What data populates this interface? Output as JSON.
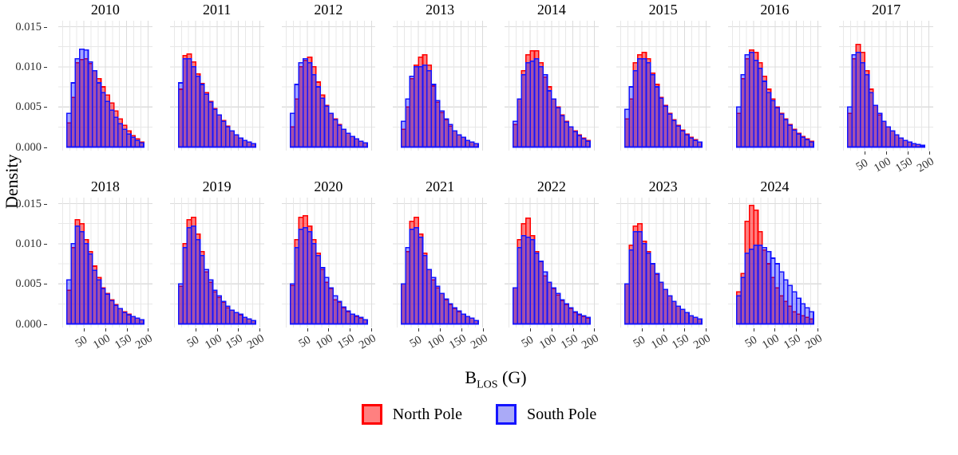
{
  "figure": {
    "y_axis_title": "Density",
    "x_axis_title": {
      "base": "B",
      "subscript": "LOS",
      "unit": " (G)"
    },
    "y_tick_labels": [
      "0.015",
      "0.010",
      "0.005",
      "0.000"
    ],
    "y_tick_values": [
      0.015,
      0.01,
      0.005,
      0.0
    ],
    "x_tick_labels": [
      "50",
      "100",
      "150",
      "200"
    ],
    "x_tick_values": [
      50,
      100,
      150,
      200
    ]
  },
  "legend": {
    "items": [
      {
        "label": "North Pole",
        "stroke": "#FF0000",
        "fill": "#FF8080"
      },
      {
        "label": "South Pole",
        "stroke": "#1414FF",
        "fill": "#AAAAF7"
      }
    ]
  },
  "chart_data": {
    "type": "bar",
    "subtype": "faceted-overlaid-density-histograms",
    "title": "",
    "xlabel": "B_LOS (G)",
    "ylabel": "Density",
    "x_domain": [
      -10,
      210
    ],
    "y_domain": [
      -0.00045,
      0.01575
    ],
    "xlim": [
      0,
      200
    ],
    "ylim": [
      0,
      0.015
    ],
    "bin_start": 10,
    "bin_width": 10,
    "grid": true,
    "x_gridline_step": 16.6667,
    "y_gridline_step": 0.0025,
    "legend_position": "bottom",
    "series_names": [
      "North Pole",
      "South Pole"
    ],
    "colors": {
      "north_stroke": "#FF0000",
      "north_fill": "rgba(255,0,0,0.50)",
      "south_stroke": "#1414FF",
      "south_fill": "rgba(0,0,255,0.35)",
      "grid_minor": "#E8E8E8",
      "grid_major": "#DCDCDC",
      "tick_text": "#303030"
    },
    "facet_rows": [
      8,
      7
    ],
    "facets": [
      {
        "year": "2010",
        "north": [
          0.003,
          0.0062,
          0.0105,
          0.0109,
          0.011,
          0.0104,
          0.0095,
          0.0085,
          0.0075,
          0.0065,
          0.0055,
          0.0045,
          0.0035,
          0.0027,
          0.002,
          0.0014,
          0.001,
          0.0006
        ],
        "south": [
          0.0042,
          0.008,
          0.011,
          0.0122,
          0.0121,
          0.0106,
          0.0095,
          0.008,
          0.0068,
          0.0057,
          0.0046,
          0.0037,
          0.0029,
          0.0022,
          0.0016,
          0.0012,
          0.0008,
          0.0005
        ]
      },
      {
        "year": "2011",
        "north": [
          0.0072,
          0.0114,
          0.0116,
          0.0106,
          0.0091,
          0.0079,
          0.0068,
          0.0057,
          0.0048,
          0.004,
          0.0033,
          0.0026,
          0.002,
          0.0015,
          0.0011,
          0.0008,
          0.0006,
          0.0004
        ],
        "south": [
          0.008,
          0.011,
          0.011,
          0.01,
          0.0088,
          0.0078,
          0.0066,
          0.0056,
          0.0047,
          0.004,
          0.0032,
          0.0025,
          0.002,
          0.0015,
          0.0011,
          0.0008,
          0.0006,
          0.0004
        ]
      },
      {
        "year": "2012",
        "north": [
          0.0025,
          0.006,
          0.01,
          0.0108,
          0.0112,
          0.01,
          0.0081,
          0.0065,
          0.0052,
          0.0042,
          0.0035,
          0.0028,
          0.0022,
          0.0017,
          0.0013,
          0.001,
          0.0007,
          0.0005
        ],
        "south": [
          0.0042,
          0.0078,
          0.0105,
          0.011,
          0.0105,
          0.009,
          0.0075,
          0.0061,
          0.0051,
          0.0042,
          0.0034,
          0.0027,
          0.0022,
          0.0017,
          0.0013,
          0.001,
          0.0007,
          0.0005
        ]
      },
      {
        "year": "2013",
        "north": [
          0.0022,
          0.005,
          0.0085,
          0.0102,
          0.0112,
          0.0115,
          0.0102,
          0.0076,
          0.0056,
          0.0043,
          0.0034,
          0.0026,
          0.002,
          0.0015,
          0.0012,
          0.0008,
          0.0006,
          0.0004
        ],
        "south": [
          0.0032,
          0.006,
          0.0088,
          0.01,
          0.01,
          0.0102,
          0.0095,
          0.0078,
          0.0058,
          0.0045,
          0.0035,
          0.0028,
          0.002,
          0.0015,
          0.0012,
          0.0008,
          0.0006,
          0.0004
        ]
      },
      {
        "year": "2014",
        "north": [
          0.0028,
          0.006,
          0.0095,
          0.0115,
          0.012,
          0.012,
          0.0105,
          0.0087,
          0.0075,
          0.006,
          0.005,
          0.004,
          0.0032,
          0.0025,
          0.002,
          0.0015,
          0.0011,
          0.0008
        ],
        "south": [
          0.0032,
          0.006,
          0.009,
          0.0105,
          0.0107,
          0.011,
          0.01,
          0.009,
          0.007,
          0.006,
          0.0049,
          0.0039,
          0.0031,
          0.0025,
          0.0019,
          0.0014,
          0.001,
          0.0007
        ]
      },
      {
        "year": "2015",
        "north": [
          0.0035,
          0.006,
          0.0105,
          0.0115,
          0.0118,
          0.011,
          0.0092,
          0.0078,
          0.0062,
          0.0052,
          0.0042,
          0.0034,
          0.0027,
          0.0021,
          0.0016,
          0.0012,
          0.0009,
          0.0006
        ],
        "south": [
          0.0047,
          0.0075,
          0.0095,
          0.011,
          0.011,
          0.0105,
          0.009,
          0.0075,
          0.0061,
          0.0051,
          0.0041,
          0.0033,
          0.0026,
          0.002,
          0.0015,
          0.0011,
          0.0008,
          0.0006
        ]
      },
      {
        "year": "2016",
        "north": [
          0.0042,
          0.0085,
          0.011,
          0.0121,
          0.0118,
          0.0105,
          0.0088,
          0.0072,
          0.006,
          0.005,
          0.0042,
          0.0035,
          0.0028,
          0.0022,
          0.0017,
          0.0013,
          0.001,
          0.0007
        ],
        "south": [
          0.005,
          0.009,
          0.0115,
          0.0118,
          0.0108,
          0.0098,
          0.0082,
          0.0068,
          0.0058,
          0.0049,
          0.0041,
          0.0034,
          0.0027,
          0.0021,
          0.0016,
          0.0012,
          0.0009,
          0.0006
        ]
      },
      {
        "year": "2017",
        "north": [
          0.0042,
          0.011,
          0.0128,
          0.0118,
          0.0095,
          0.0072,
          0.0052,
          0.004,
          0.0032,
          0.0025,
          0.002,
          0.0015,
          0.0011,
          0.0008,
          0.0006,
          0.0004,
          0.0003,
          0.0002
        ],
        "south": [
          0.005,
          0.0115,
          0.0118,
          0.0105,
          0.009,
          0.0068,
          0.0052,
          0.0042,
          0.0032,
          0.0025,
          0.002,
          0.0015,
          0.0011,
          0.0008,
          0.0006,
          0.0004,
          0.0003,
          0.0002
        ]
      },
      {
        "year": "2018",
        "north": [
          0.0042,
          0.0095,
          0.013,
          0.0125,
          0.0105,
          0.009,
          0.0072,
          0.0058,
          0.0045,
          0.0038,
          0.003,
          0.0024,
          0.0019,
          0.0015,
          0.0012,
          0.0009,
          0.0007,
          0.0005
        ],
        "south": [
          0.0055,
          0.01,
          0.0122,
          0.0115,
          0.01,
          0.0087,
          0.0067,
          0.0055,
          0.0044,
          0.0037,
          0.0029,
          0.0023,
          0.0019,
          0.0014,
          0.0011,
          0.0009,
          0.0007,
          0.0005
        ]
      },
      {
        "year": "2019",
        "north": [
          0.0047,
          0.01,
          0.013,
          0.0133,
          0.0112,
          0.009,
          0.0065,
          0.0052,
          0.004,
          0.0033,
          0.0027,
          0.002,
          0.0017,
          0.0014,
          0.0011,
          0.0008,
          0.0006,
          0.0004
        ],
        "south": [
          0.005,
          0.0095,
          0.012,
          0.0122,
          0.0105,
          0.0085,
          0.0068,
          0.0055,
          0.0042,
          0.0035,
          0.0028,
          0.0022,
          0.0017,
          0.0014,
          0.0012,
          0.0008,
          0.0006,
          0.0004
        ]
      },
      {
        "year": "2020",
        "north": [
          0.0048,
          0.0105,
          0.0133,
          0.0135,
          0.0122,
          0.0105,
          0.0088,
          0.0068,
          0.0052,
          0.0044,
          0.003,
          0.0027,
          0.002,
          0.0015,
          0.0012,
          0.0009,
          0.0007,
          0.0005
        ],
        "south": [
          0.005,
          0.0095,
          0.0118,
          0.012,
          0.0115,
          0.01,
          0.0085,
          0.007,
          0.0058,
          0.0045,
          0.0035,
          0.0028,
          0.0021,
          0.0016,
          0.0012,
          0.001,
          0.0008,
          0.0005
        ]
      },
      {
        "year": "2021",
        "north": [
          0.005,
          0.009,
          0.0128,
          0.0133,
          0.0112,
          0.0088,
          0.0068,
          0.0055,
          0.0045,
          0.0038,
          0.003,
          0.0024,
          0.0019,
          0.0015,
          0.0012,
          0.0009,
          0.0007,
          0.0004
        ],
        "south": [
          0.005,
          0.0095,
          0.0118,
          0.012,
          0.0108,
          0.0085,
          0.0068,
          0.0058,
          0.0047,
          0.0038,
          0.0031,
          0.0025,
          0.002,
          0.0016,
          0.0012,
          0.0009,
          0.0007,
          0.0004
        ]
      },
      {
        "year": "2022",
        "north": [
          0.0045,
          0.0105,
          0.0125,
          0.0132,
          0.011,
          0.009,
          0.0078,
          0.006,
          0.0052,
          0.0044,
          0.0036,
          0.0029,
          0.0024,
          0.0019,
          0.0014,
          0.0011,
          0.0009,
          0.0007
        ],
        "south": [
          0.0045,
          0.0095,
          0.011,
          0.0108,
          0.0105,
          0.0088,
          0.0078,
          0.0065,
          0.0052,
          0.0045,
          0.0038,
          0.003,
          0.0025,
          0.002,
          0.0015,
          0.0012,
          0.001,
          0.0008
        ]
      },
      {
        "year": "2023",
        "north": [
          0.005,
          0.0098,
          0.0122,
          0.0125,
          0.0103,
          0.009,
          0.0075,
          0.0062,
          0.0052,
          0.0043,
          0.0035,
          0.0028,
          0.0022,
          0.0018,
          0.0014,
          0.001,
          0.0008,
          0.0006
        ],
        "south": [
          0.005,
          0.0092,
          0.0115,
          0.0115,
          0.01,
          0.0088,
          0.0075,
          0.0063,
          0.0052,
          0.0043,
          0.0035,
          0.0028,
          0.0022,
          0.0018,
          0.0014,
          0.001,
          0.0008,
          0.0006
        ]
      },
      {
        "year": "2024",
        "north": [
          0.004,
          0.0063,
          0.0128,
          0.0148,
          0.0142,
          0.0115,
          0.0092,
          0.0075,
          0.0058,
          0.0045,
          0.0035,
          0.0028,
          0.0022,
          0.0015,
          0.0012,
          0.001,
          0.0008,
          0.0006
        ],
        "south": [
          0.0035,
          0.0058,
          0.0088,
          0.0093,
          0.0098,
          0.0098,
          0.0095,
          0.009,
          0.0082,
          0.0075,
          0.0065,
          0.0055,
          0.0048,
          0.004,
          0.0032,
          0.0025,
          0.002,
          0.0015
        ]
      }
    ]
  }
}
